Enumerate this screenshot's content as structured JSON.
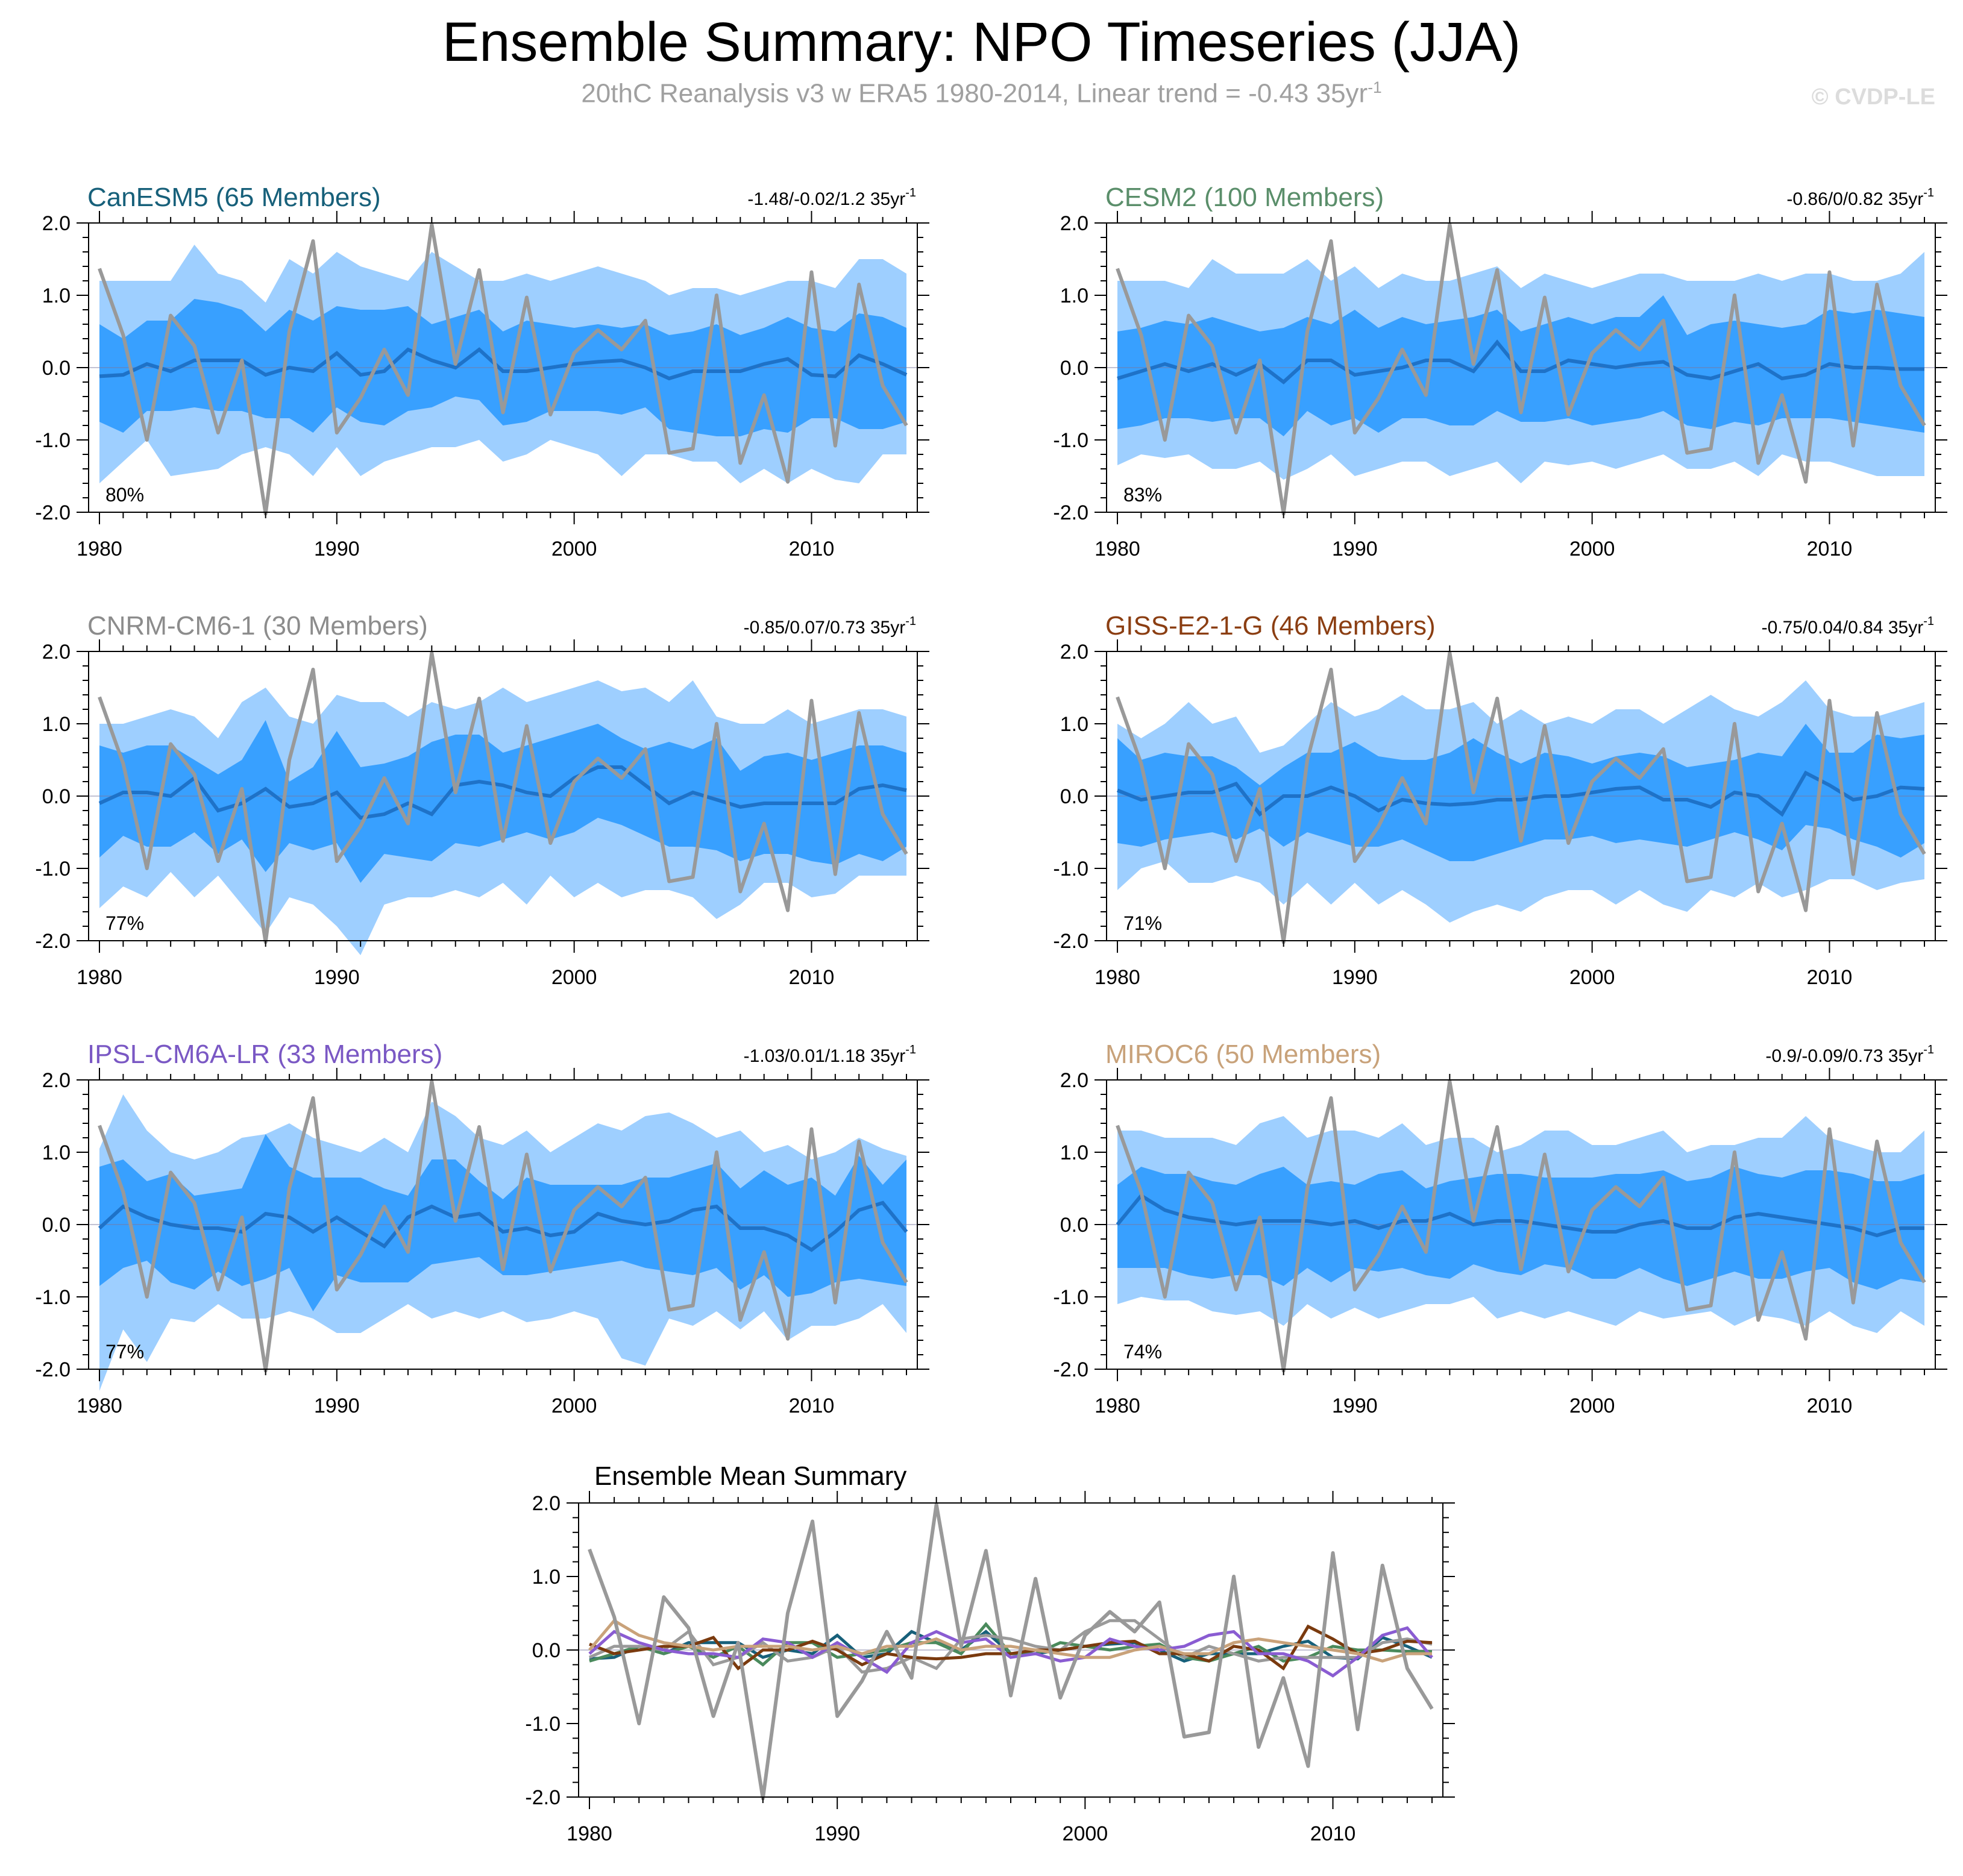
{
  "title": "Ensemble Summary: NPO Timeseries (JJA)",
  "subtitle": {
    "text": "20thC Reanalysis v3 w ERA5 1980-2014, Linear trend = -0.43 35yr",
    "superscript": "-1"
  },
  "watermark": "© CVDP-LE",
  "colors": {
    "outer_band": "#9ecfff",
    "inner_band": "#38a0ff",
    "ensemble_mean": "#1e72c8",
    "observed": "#999999"
  },
  "observed_series": [
    1.37,
    0.45,
    -1.0,
    0.72,
    0.3,
    -0.9,
    0.1,
    -2.02,
    0.5,
    1.75,
    -0.9,
    -0.42,
    0.25,
    -0.38,
    1.98,
    0.05,
    1.35,
    -0.62,
    0.97,
    -0.65,
    0.2,
    0.52,
    0.25,
    0.65,
    -1.18,
    -1.12,
    1.0,
    -1.32,
    -0.38,
    -1.58,
    1.32,
    -1.08,
    1.15,
    -0.25,
    -0.8
  ],
  "chart_data": [
    {
      "type": "area",
      "title": "CanESM5 (65 Members)",
      "title_color": "#17607a",
      "trend_label": "-1.48/-0.02/1.2 35yr",
      "trend_sup": "-1",
      "pct_label": "80%",
      "x_start": 1980,
      "x_end": 2014,
      "xticks": [
        "1980",
        "1990",
        "2000",
        "2010"
      ],
      "ylim": [
        -2.0,
        2.0
      ],
      "yticks": [
        "2.0",
        "1.0",
        "0.0",
        "-1.0",
        "-2.0"
      ],
      "outer_top": [
        1.2,
        1.2,
        1.2,
        1.2,
        1.7,
        1.3,
        1.2,
        0.9,
        1.5,
        1.3,
        1.6,
        1.4,
        1.3,
        1.2,
        1.6,
        1.4,
        1.2,
        1.2,
        1.3,
        1.2,
        1.3,
        1.4,
        1.3,
        1.2,
        1.0,
        1.1,
        1.1,
        1.0,
        1.1,
        1.2,
        1.2,
        1.1,
        1.5,
        1.5,
        1.3
      ],
      "outer_bot": [
        -1.6,
        -1.3,
        -1.0,
        -1.5,
        -1.45,
        -1.4,
        -1.2,
        -1.1,
        -1.2,
        -1.5,
        -1.1,
        -1.5,
        -1.3,
        -1.2,
        -1.1,
        -1.1,
        -1.0,
        -1.3,
        -1.2,
        -1.0,
        -1.1,
        -1.2,
        -1.5,
        -1.2,
        -1.2,
        -1.3,
        -1.3,
        -1.6,
        -1.4,
        -1.6,
        -1.4,
        -1.55,
        -1.6,
        -1.2,
        -1.2
      ],
      "inner_top": [
        0.6,
        0.4,
        0.65,
        0.65,
        0.95,
        0.9,
        0.8,
        0.5,
        0.8,
        0.65,
        0.85,
        0.8,
        0.8,
        0.85,
        0.6,
        0.7,
        0.8,
        0.5,
        0.65,
        0.6,
        0.55,
        0.6,
        0.55,
        0.6,
        0.45,
        0.5,
        0.6,
        0.45,
        0.55,
        0.7,
        0.55,
        0.5,
        0.75,
        0.7,
        0.55
      ],
      "inner_bot": [
        -0.75,
        -0.9,
        -0.6,
        -0.6,
        -0.55,
        -0.6,
        -0.6,
        -0.7,
        -0.7,
        -0.9,
        -0.55,
        -0.75,
        -0.8,
        -0.6,
        -0.55,
        -0.4,
        -0.45,
        -0.8,
        -0.75,
        -0.6,
        -0.6,
        -0.6,
        -0.65,
        -0.55,
        -0.85,
        -0.9,
        -0.95,
        -0.95,
        -0.85,
        -0.9,
        -0.7,
        -0.7,
        -0.85,
        -0.85,
        -0.75
      ],
      "mean": [
        -0.12,
        -0.1,
        0.05,
        -0.05,
        0.1,
        0.1,
        0.1,
        -0.1,
        0.0,
        -0.05,
        0.2,
        -0.1,
        -0.05,
        0.25,
        0.1,
        0.0,
        0.25,
        -0.05,
        -0.05,
        0.0,
        0.05,
        0.08,
        0.1,
        0.0,
        -0.15,
        -0.05,
        -0.05,
        -0.05,
        0.05,
        0.12,
        -0.1,
        -0.12,
        0.17,
        0.05,
        -0.1
      ],
      "legend_color": "#17607a"
    },
    {
      "type": "area",
      "title": "CESM2 (100 Members)",
      "title_color": "#5a8e6a",
      "trend_label": "-0.86/0/0.82 35yr",
      "trend_sup": "-1",
      "pct_label": "83%",
      "x_start": 1980,
      "x_end": 2014,
      "xticks": [
        "1980",
        "1990",
        "2000",
        "2010"
      ],
      "ylim": [
        -2.0,
        2.0
      ],
      "yticks": [
        "2.0",
        "1.0",
        "0.0",
        "-1.0",
        "-2.0"
      ],
      "outer_top": [
        1.2,
        1.2,
        1.2,
        1.1,
        1.5,
        1.3,
        1.3,
        1.3,
        1.5,
        1.2,
        1.4,
        1.1,
        1.3,
        1.2,
        1.2,
        1.3,
        1.4,
        1.1,
        1.3,
        1.2,
        1.1,
        1.2,
        1.3,
        1.3,
        1.2,
        1.2,
        1.2,
        1.3,
        1.2,
        1.3,
        1.3,
        1.2,
        1.2,
        1.3,
        1.6
      ],
      "outer_bot": [
        -1.35,
        -1.2,
        -1.25,
        -1.2,
        -1.4,
        -1.4,
        -1.3,
        -1.55,
        -1.4,
        -1.2,
        -1.5,
        -1.4,
        -1.3,
        -1.3,
        -1.5,
        -1.4,
        -1.3,
        -1.6,
        -1.3,
        -1.35,
        -1.3,
        -1.4,
        -1.3,
        -1.2,
        -1.4,
        -1.4,
        -1.3,
        -1.5,
        -1.2,
        -1.3,
        -1.3,
        -1.4,
        -1.5,
        -1.5,
        -1.5
      ],
      "inner_top": [
        0.5,
        0.55,
        0.65,
        0.6,
        0.7,
        0.6,
        0.5,
        0.55,
        0.7,
        0.6,
        0.8,
        0.55,
        0.7,
        0.6,
        0.65,
        0.7,
        0.8,
        0.5,
        0.6,
        0.7,
        0.6,
        0.7,
        0.7,
        1.0,
        0.45,
        0.6,
        0.65,
        0.6,
        0.55,
        0.6,
        0.8,
        0.75,
        0.8,
        0.75,
        0.7
      ],
      "inner_bot": [
        -0.85,
        -0.8,
        -0.7,
        -0.7,
        -0.75,
        -0.7,
        -0.7,
        -0.95,
        -0.6,
        -0.8,
        -0.7,
        -0.9,
        -0.7,
        -0.7,
        -0.8,
        -0.8,
        -0.6,
        -0.75,
        -0.75,
        -0.7,
        -0.8,
        -0.75,
        -0.7,
        -0.6,
        -0.8,
        -0.85,
        -0.75,
        -0.8,
        -0.7,
        -0.7,
        -0.7,
        -0.75,
        -0.8,
        -0.85,
        -0.9
      ],
      "mean": [
        -0.15,
        -0.05,
        0.05,
        -0.05,
        0.05,
        -0.1,
        0.05,
        -0.2,
        0.1,
        0.1,
        -0.1,
        -0.05,
        0.0,
        0.1,
        0.1,
        -0.05,
        0.35,
        -0.05,
        -0.05,
        0.1,
        0.05,
        0.0,
        0.05,
        0.08,
        -0.1,
        -0.15,
        -0.05,
        0.05,
        -0.15,
        -0.1,
        0.05,
        0.0,
        0.0,
        -0.02,
        -0.02
      ],
      "legend_color": "#4a8a5c"
    },
    {
      "type": "area",
      "title": "CNRM-CM6-1 (30 Members)",
      "title_color": "#8c8c8c",
      "trend_label": "-0.85/0.07/0.73 35yr",
      "trend_sup": "-1",
      "pct_label": "77%",
      "x_start": 1980,
      "x_end": 2014,
      "xticks": [
        "1980",
        "1990",
        "2000",
        "2010"
      ],
      "ylim": [
        -2.0,
        2.0
      ],
      "yticks": [
        "2.0",
        "1.0",
        "0.0",
        "-1.0",
        "-2.0"
      ],
      "outer_top": [
        1.0,
        1.0,
        1.1,
        1.2,
        1.1,
        0.8,
        1.3,
        1.5,
        1.1,
        1.0,
        1.4,
        1.3,
        1.3,
        1.1,
        1.3,
        1.2,
        1.3,
        1.5,
        1.3,
        1.4,
        1.5,
        1.6,
        1.45,
        1.5,
        1.3,
        1.6,
        1.1,
        1.0,
        1.0,
        1.2,
        1.0,
        1.1,
        1.2,
        1.2,
        1.1
      ],
      "outer_bot": [
        -1.55,
        -1.25,
        -1.4,
        -1.05,
        -1.4,
        -1.1,
        -1.5,
        -1.9,
        -1.4,
        -1.5,
        -1.8,
        -2.2,
        -1.5,
        -1.4,
        -1.4,
        -1.3,
        -1.4,
        -1.2,
        -1.5,
        -1.1,
        -1.4,
        -1.2,
        -1.4,
        -1.3,
        -1.3,
        -1.4,
        -1.7,
        -1.5,
        -1.2,
        -1.2,
        -1.4,
        -1.35,
        -1.1,
        -1.1,
        -1.1
      ],
      "inner_top": [
        0.7,
        0.6,
        0.7,
        0.7,
        0.5,
        0.3,
        0.5,
        1.05,
        0.2,
        0.4,
        0.9,
        0.4,
        0.45,
        0.55,
        0.75,
        0.85,
        0.85,
        0.6,
        0.7,
        0.8,
        0.9,
        1.0,
        0.8,
        0.65,
        0.75,
        0.65,
        0.8,
        0.35,
        0.55,
        0.6,
        0.5,
        0.6,
        0.7,
        0.7,
        0.6
      ],
      "inner_bot": [
        -0.85,
        -0.55,
        -0.7,
        -0.7,
        -0.5,
        -0.8,
        -0.6,
        -1.05,
        -0.65,
        -0.75,
        -0.65,
        -1.2,
        -0.8,
        -0.85,
        -0.9,
        -0.65,
        -0.7,
        -0.6,
        -0.5,
        -0.6,
        -0.5,
        -0.3,
        -0.4,
        -0.55,
        -0.7,
        -0.7,
        -0.75,
        -0.9,
        -0.8,
        -0.8,
        -0.9,
        -0.95,
        -0.8,
        -0.9,
        -0.7
      ],
      "mean": [
        -0.1,
        0.05,
        0.05,
        0.0,
        0.25,
        -0.2,
        -0.1,
        0.1,
        -0.15,
        -0.1,
        0.05,
        -0.3,
        -0.25,
        -0.1,
        -0.25,
        0.15,
        0.2,
        0.15,
        0.05,
        0.0,
        0.25,
        0.4,
        0.4,
        0.15,
        -0.1,
        0.05,
        -0.05,
        -0.15,
        -0.1,
        -0.1,
        -0.1,
        -0.1,
        0.1,
        0.15,
        0.08
      ],
      "legend_color": "#9a9a9a"
    },
    {
      "type": "area",
      "title": "GISS-E2-1-G (46 Members)",
      "title_color": "#8b3e12",
      "trend_label": "-0.75/0.04/0.84 35yr",
      "trend_sup": "-1",
      "pct_label": "71%",
      "x_start": 1980,
      "x_end": 2014,
      "xticks": [
        "1980",
        "1990",
        "2000",
        "2010"
      ],
      "ylim": [
        -2.0,
        2.0
      ],
      "yticks": [
        "2.0",
        "1.0",
        "0.0",
        "-1.0",
        "-2.0"
      ],
      "outer_top": [
        1.0,
        0.8,
        1.0,
        1.3,
        1.0,
        1.1,
        0.6,
        0.7,
        1.0,
        1.3,
        1.1,
        1.2,
        1.4,
        1.2,
        1.2,
        1.3,
        1.0,
        1.2,
        1.0,
        1.1,
        1.0,
        1.2,
        1.2,
        1.0,
        1.2,
        1.4,
        1.2,
        1.1,
        1.3,
        1.6,
        1.2,
        1.1,
        1.1,
        1.2,
        1.3
      ],
      "outer_bot": [
        -1.3,
        -1.0,
        -0.9,
        -1.2,
        -1.2,
        -1.1,
        -1.2,
        -1.5,
        -1.2,
        -1.5,
        -1.2,
        -1.5,
        -1.3,
        -1.5,
        -1.75,
        -1.6,
        -1.5,
        -1.6,
        -1.4,
        -1.3,
        -1.3,
        -1.5,
        -1.3,
        -1.5,
        -1.6,
        -1.3,
        -1.4,
        -1.2,
        -1.4,
        -1.3,
        -1.15,
        -1.15,
        -1.3,
        -1.2,
        -1.15
      ],
      "inner_top": [
        0.8,
        0.5,
        0.6,
        0.55,
        0.55,
        0.4,
        0.15,
        0.4,
        0.6,
        0.6,
        0.75,
        0.55,
        0.5,
        0.5,
        0.6,
        0.8,
        0.6,
        0.45,
        0.6,
        0.55,
        0.45,
        0.55,
        0.6,
        0.55,
        0.4,
        0.45,
        0.5,
        0.6,
        0.55,
        1.0,
        0.6,
        0.6,
        0.85,
        0.8,
        0.85
      ],
      "inner_bot": [
        -0.65,
        -0.7,
        -0.6,
        -0.55,
        -0.5,
        -0.6,
        -0.45,
        -0.7,
        -0.5,
        -0.6,
        -0.7,
        -0.7,
        -0.6,
        -0.75,
        -0.9,
        -0.9,
        -0.8,
        -0.7,
        -0.6,
        -0.6,
        -0.55,
        -0.65,
        -0.6,
        -0.65,
        -0.7,
        -0.6,
        -0.5,
        -0.6,
        -0.75,
        -0.4,
        -0.45,
        -0.6,
        -0.7,
        -0.85,
        -0.65
      ],
      "mean": [
        0.08,
        -0.05,
        0.0,
        0.05,
        0.05,
        0.17,
        -0.25,
        0.0,
        0.0,
        0.12,
        0.0,
        -0.2,
        -0.05,
        -0.1,
        -0.12,
        -0.1,
        -0.05,
        -0.05,
        0.0,
        0.0,
        0.05,
        0.1,
        0.12,
        -0.05,
        -0.05,
        -0.15,
        0.05,
        0.0,
        -0.25,
        0.32,
        0.15,
        -0.05,
        0.0,
        0.12,
        0.1
      ],
      "legend_color": "#7a3a0e"
    },
    {
      "type": "area",
      "title": "IPSL-CM6A-LR (33 Members)",
      "title_color": "#7a58c4",
      "trend_label": "-1.03/0.01/1.18 35yr",
      "trend_sup": "-1",
      "pct_label": "77%",
      "x_start": 1980,
      "x_end": 2014,
      "xticks": [
        "1980",
        "1990",
        "2000",
        "2010"
      ],
      "ylim": [
        -2.0,
        2.0
      ],
      "yticks": [
        "2.0",
        "1.0",
        "0.0",
        "-1.0",
        "-2.0"
      ],
      "outer_top": [
        1.05,
        1.8,
        1.3,
        1.0,
        0.9,
        1.0,
        1.2,
        1.25,
        1.4,
        1.2,
        1.1,
        1.0,
        1.2,
        1.0,
        1.7,
        1.5,
        1.2,
        1.1,
        1.3,
        1.0,
        1.2,
        1.4,
        1.3,
        1.5,
        1.55,
        1.4,
        1.2,
        1.3,
        1.0,
        1.1,
        0.9,
        1.0,
        1.2,
        1.05,
        0.95
      ],
      "outer_bot": [
        -2.3,
        -1.45,
        -1.9,
        -1.3,
        -1.35,
        -1.1,
        -1.3,
        -1.3,
        -1.2,
        -1.3,
        -1.5,
        -1.5,
        -1.3,
        -1.1,
        -1.3,
        -1.2,
        -1.3,
        -1.2,
        -1.35,
        -1.3,
        -1.2,
        -1.3,
        -1.85,
        -1.95,
        -1.3,
        -1.4,
        -1.2,
        -1.45,
        -1.2,
        -1.6,
        -1.4,
        -1.4,
        -1.3,
        -1.1,
        -1.5
      ],
      "inner_top": [
        0.8,
        0.9,
        0.6,
        0.7,
        0.4,
        0.45,
        0.5,
        1.25,
        0.8,
        0.65,
        0.65,
        0.65,
        0.5,
        0.4,
        0.9,
        0.9,
        0.6,
        0.35,
        0.65,
        0.55,
        0.55,
        0.55,
        0.55,
        0.65,
        0.65,
        0.75,
        0.85,
        0.5,
        0.75,
        0.55,
        0.65,
        0.4,
        0.95,
        0.55,
        0.9
      ],
      "inner_bot": [
        -0.85,
        -0.6,
        -0.5,
        -0.8,
        -0.9,
        -0.65,
        -0.85,
        -0.75,
        -0.6,
        -1.2,
        -0.7,
        -0.8,
        -0.8,
        -0.8,
        -0.55,
        -0.5,
        -0.45,
        -0.7,
        -0.7,
        -0.65,
        -0.6,
        -0.55,
        -0.5,
        -0.6,
        -0.65,
        -0.7,
        -0.6,
        -0.9,
        -0.7,
        -1.0,
        -0.95,
        -0.8,
        -0.75,
        -0.8,
        -0.85
      ],
      "mean": [
        -0.05,
        0.25,
        0.1,
        0.0,
        -0.05,
        -0.05,
        -0.1,
        0.15,
        0.1,
        -0.1,
        0.1,
        -0.1,
        -0.3,
        0.1,
        0.25,
        0.1,
        0.15,
        -0.1,
        -0.05,
        -0.15,
        -0.1,
        0.15,
        0.05,
        0.0,
        0.05,
        0.2,
        0.25,
        -0.05,
        -0.05,
        -0.15,
        -0.35,
        -0.1,
        0.2,
        0.3,
        -0.1
      ],
      "legend_color": "#8a5cd2"
    },
    {
      "type": "area",
      "title": "MIROC6 (50 Members)",
      "title_color": "#c8a27a",
      "trend_label": "-0.9/-0.09/0.73 35yr",
      "trend_sup": "-1",
      "pct_label": "74%",
      "x_start": 1980,
      "x_end": 2014,
      "xticks": [
        "1980",
        "1990",
        "2000",
        "2010"
      ],
      "ylim": [
        -2.0,
        2.0
      ],
      "yticks": [
        "2.0",
        "1.0",
        "0.0",
        "-1.0",
        "-2.0"
      ],
      "outer_top": [
        1.3,
        1.3,
        1.2,
        1.2,
        1.2,
        1.1,
        1.4,
        1.5,
        1.2,
        1.3,
        1.3,
        1.2,
        1.4,
        1.1,
        1.2,
        1.2,
        1.0,
        1.1,
        1.3,
        1.3,
        1.1,
        1.1,
        1.2,
        1.3,
        1.0,
        1.1,
        1.1,
        1.2,
        1.2,
        1.5,
        1.2,
        1.1,
        1.0,
        1.0,
        1.3
      ],
      "outer_bot": [
        -1.1,
        -1.0,
        -1.05,
        -1.05,
        -1.2,
        -1.25,
        -1.2,
        -1.4,
        -1.1,
        -1.3,
        -1.15,
        -1.3,
        -1.2,
        -1.1,
        -1.1,
        -1.0,
        -1.3,
        -1.2,
        -1.3,
        -1.2,
        -1.3,
        -1.4,
        -1.2,
        -1.3,
        -1.25,
        -1.2,
        -1.4,
        -1.25,
        -1.3,
        -1.4,
        -1.2,
        -1.4,
        -1.5,
        -1.2,
        -1.4
      ],
      "inner_top": [
        0.55,
        0.8,
        0.7,
        0.7,
        0.6,
        0.55,
        0.7,
        0.8,
        0.55,
        0.6,
        0.55,
        0.7,
        0.75,
        0.5,
        0.6,
        0.65,
        0.7,
        0.7,
        0.65,
        0.65,
        0.65,
        0.7,
        0.7,
        0.75,
        0.6,
        0.65,
        0.8,
        0.7,
        0.65,
        0.75,
        0.75,
        0.7,
        0.6,
        0.6,
        0.7
      ],
      "inner_bot": [
        -0.6,
        -0.6,
        -0.6,
        -0.7,
        -0.75,
        -0.7,
        -0.7,
        -0.85,
        -0.6,
        -0.8,
        -0.6,
        -0.65,
        -0.6,
        -0.7,
        -0.75,
        -0.55,
        -0.65,
        -0.7,
        -0.55,
        -0.6,
        -0.75,
        -0.75,
        -0.6,
        -0.75,
        -0.85,
        -0.75,
        -0.65,
        -0.75,
        -0.75,
        -0.65,
        -0.6,
        -0.8,
        -0.9,
        -0.75,
        -0.8
      ],
      "mean": [
        0.0,
        0.4,
        0.2,
        0.1,
        0.05,
        0.0,
        0.05,
        0.05,
        0.05,
        0.0,
        0.05,
        -0.05,
        0.05,
        0.05,
        0.15,
        0.0,
        0.05,
        0.05,
        0.0,
        -0.05,
        -0.1,
        -0.1,
        0.0,
        0.05,
        -0.05,
        -0.05,
        0.1,
        0.15,
        0.1,
        0.05,
        0.0,
        -0.05,
        -0.15,
        -0.05,
        -0.05
      ],
      "legend_color": "#c9a27a"
    },
    {
      "type": "line",
      "title": "Ensemble Mean Summary",
      "title_color": "#000000",
      "x_start": 1980,
      "x_end": 2014,
      "xticks": [
        "1980",
        "1990",
        "2000",
        "2010"
      ],
      "ylim": [
        -2.0,
        2.0
      ],
      "yticks": [
        "2.0",
        "1.0",
        "0.0",
        "-1.0",
        "-2.0"
      ],
      "series": [
        "CanESM5",
        "CESM2",
        "CNRM-CM6-1",
        "GISS-E2-1-G",
        "IPSL-CM6A-LR",
        "MIROC6",
        "20thC Reanalysis v3 w ERA5"
      ]
    }
  ]
}
